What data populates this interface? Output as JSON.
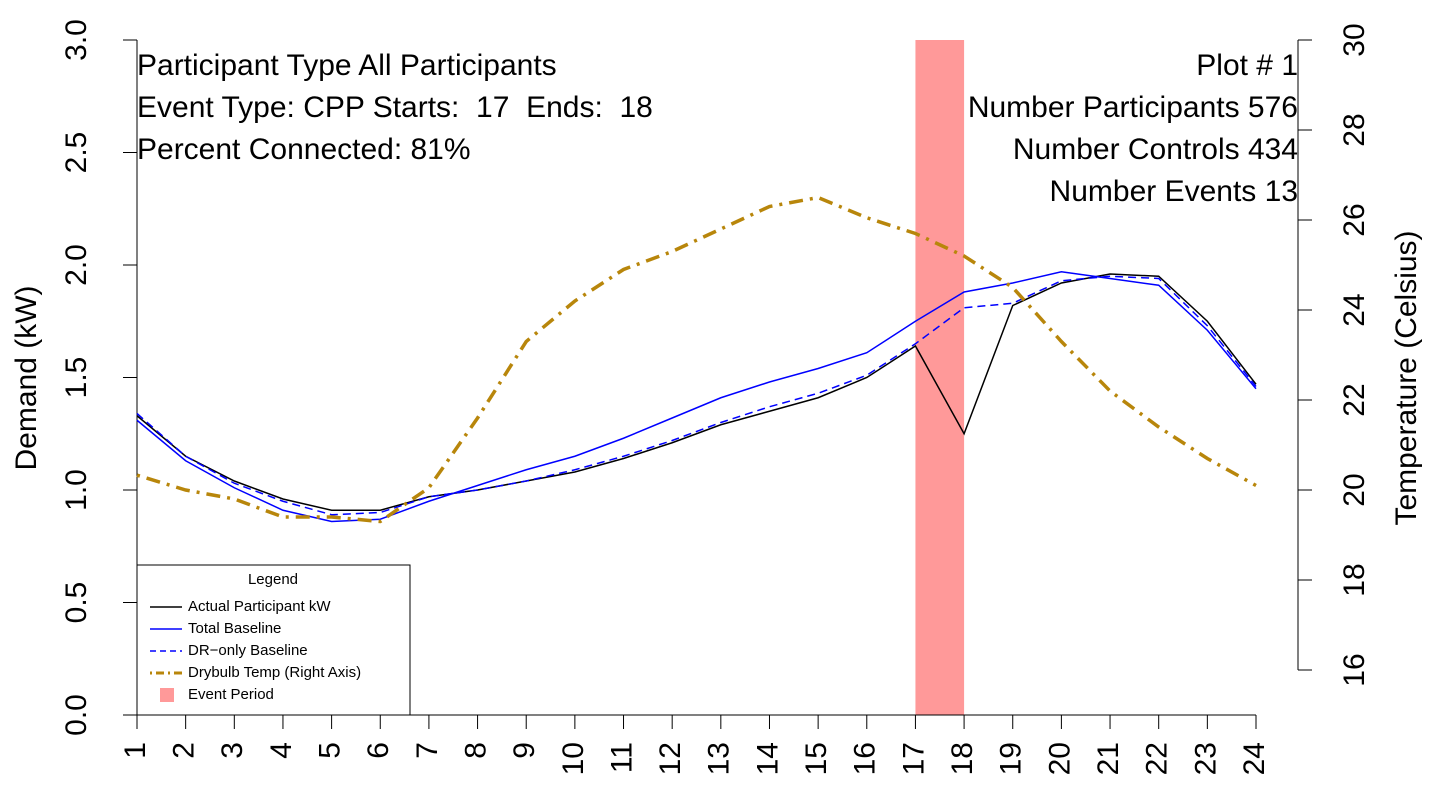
{
  "chart_data": {
    "type": "line",
    "y_label": "Demand (kW)",
    "y2_label": "Temperature (Celsius)",
    "annotations_left": [
      "Participant Type All Participants",
      "Event Type: CPP Starts:  17  Ends:  18",
      "Percent Connected: 81%"
    ],
    "annotations_right": [
      "Plot # 1",
      "Number Participants 576",
      "Number Controls 434",
      "Number Events 13"
    ],
    "x": [
      1,
      2,
      3,
      4,
      5,
      6,
      7,
      8,
      9,
      10,
      11,
      12,
      13,
      14,
      15,
      16,
      17,
      18,
      19,
      20,
      21,
      22,
      23,
      24
    ],
    "xlim": [
      1,
      24
    ],
    "xticks": [
      1,
      2,
      3,
      4,
      5,
      6,
      7,
      8,
      9,
      10,
      11,
      12,
      13,
      14,
      15,
      16,
      17,
      18,
      19,
      20,
      21,
      22,
      23,
      24
    ],
    "ylim": [
      0,
      3
    ],
    "yticks": [
      {
        "value": 0,
        "label": "0.0"
      },
      0.5,
      {
        "value": 1,
        "label": "1.0"
      },
      1.5,
      {
        "value": 2,
        "label": "2.0"
      },
      2.5,
      {
        "value": 3,
        "label": "3.0"
      }
    ],
    "y2lim": [
      16,
      30
    ],
    "y2ticks": [
      16,
      18,
      20,
      22,
      24,
      26,
      28,
      30
    ],
    "series": [
      {
        "name": "Actual Participant kW",
        "color": "#000000",
        "dash": "solid",
        "width": 1.5,
        "values": [
          1.33,
          1.15,
          1.04,
          0.96,
          0.91,
          0.91,
          0.97,
          1.0,
          1.04,
          1.08,
          1.14,
          1.21,
          1.29,
          1.35,
          1.41,
          1.5,
          1.64,
          1.25,
          1.82,
          1.92,
          1.96,
          1.95,
          1.75,
          1.47
        ]
      },
      {
        "name": "Total Baseline",
        "color": "#0000ff",
        "dash": "solid",
        "width": 1.5,
        "values": [
          1.31,
          1.13,
          1.01,
          0.91,
          0.86,
          0.87,
          0.95,
          1.02,
          1.09,
          1.15,
          1.23,
          1.32,
          1.41,
          1.48,
          1.54,
          1.61,
          1.75,
          1.88,
          1.92,
          1.97,
          1.94,
          1.91,
          1.71,
          1.45
        ]
      },
      {
        "name": "DR−only Baseline",
        "color": "#0000ff",
        "dash": "dashed",
        "width": 1.5,
        "values": [
          1.34,
          1.15,
          1.03,
          0.95,
          0.89,
          0.9,
          0.97,
          1.0,
          1.04,
          1.09,
          1.15,
          1.22,
          1.3,
          1.37,
          1.43,
          1.51,
          1.65,
          1.81,
          1.83,
          1.93,
          1.95,
          1.94,
          1.73,
          1.46
        ]
      },
      {
        "name": "Drybulb Temp (Right Axis)",
        "color": "#b8860b",
        "dash": "dotdash",
        "width": 3.5,
        "axis": "y2",
        "values": [
          20.33,
          20.0,
          19.8,
          19.4,
          19.4,
          19.3,
          20.05,
          21.6,
          23.3,
          24.2,
          24.9,
          25.3,
          25.8,
          26.3,
          26.5,
          26.05,
          25.7,
          25.2,
          24.5,
          23.3,
          22.2,
          21.4,
          20.7,
          20.1
        ]
      }
    ],
    "event": {
      "name": "Event Period",
      "start": 17,
      "end": 18,
      "color": "#ff9999"
    },
    "legend_title": "Legend",
    "legend_position": "bottom-left"
  }
}
